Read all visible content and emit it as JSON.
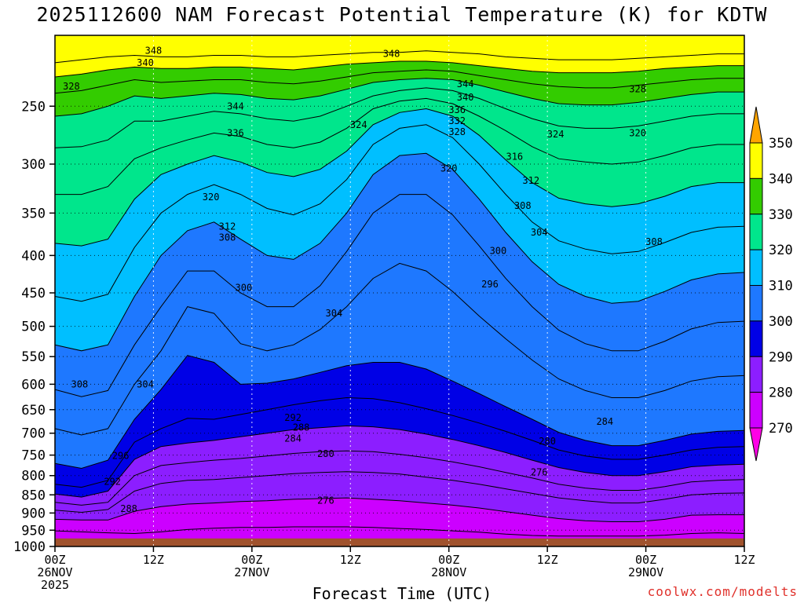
{
  "chart_data": {
    "type": "contour",
    "title": "2025112600 NAM Forecast Potential Temperature (K) for KDTW",
    "xlabel": "Forecast Time (UTC)",
    "ylabel": "",
    "credit": "coolwx.com/modelts",
    "y_ticks": [
      250,
      300,
      350,
      400,
      450,
      500,
      550,
      600,
      650,
      700,
      750,
      800,
      850,
      900,
      950,
      1000
    ],
    "ylim_hpa": [
      1000,
      200
    ],
    "x_range_hours": [
      0,
      84
    ],
    "x_ticks": [
      {
        "hour": 0,
        "line1": "00Z",
        "line2": "26NOV",
        "line3": "2025"
      },
      {
        "hour": 12,
        "line1": "12Z",
        "line2": "",
        "line3": ""
      },
      {
        "hour": 24,
        "line1": "00Z",
        "line2": "27NOV",
        "line3": ""
      },
      {
        "hour": 36,
        "line1": "12Z",
        "line2": "",
        "line3": ""
      },
      {
        "hour": 48,
        "line1": "00Z",
        "line2": "28NOV",
        "line3": ""
      },
      {
        "hour": 60,
        "line1": "12Z",
        "line2": "",
        "line3": ""
      },
      {
        "hour": 72,
        "line1": "00Z",
        "line2": "29NOV",
        "line3": ""
      },
      {
        "hour": 84,
        "line1": "12Z",
        "line2": "",
        "line3": ""
      }
    ],
    "colorbar": {
      "levels": [
        350,
        340,
        330,
        320,
        310,
        300,
        290,
        280,
        270
      ],
      "colors": [
        "#ffa500",
        "#ffff00",
        "#33cc00",
        "#00e68c",
        "#00bfff",
        "#1e78ff",
        "#0000e6",
        "#8c1eff",
        "#cc00ff",
        "#ff00e6"
      ]
    },
    "surface_color": "#a0522d",
    "isentropes_k": [
      {
        "theta": 276,
        "p": [
          952,
          955,
          958,
          960,
          955,
          948,
          944,
          942,
          942,
          940,
          940,
          940,
          942,
          945,
          948,
          952,
          956,
          962,
          966,
          968,
          968,
          968,
          968,
          965,
          960,
          958,
          960
        ]
      },
      {
        "theta": 280,
        "p": [
          918,
          920,
          920,
          895,
          882,
          875,
          872,
          868,
          866,
          862,
          860,
          858,
          862,
          866,
          872,
          878,
          886,
          896,
          906,
          916,
          922,
          925,
          925,
          918,
          906,
          905,
          905
        ]
      },
      {
        "theta": 284,
        "p": [
          892,
          898,
          890,
          840,
          820,
          812,
          810,
          805,
          800,
          795,
          792,
          790,
          792,
          796,
          804,
          812,
          822,
          834,
          846,
          858,
          866,
          872,
          872,
          862,
          850,
          846,
          845
        ]
      },
      {
        "theta": 288,
        "p": [
          870,
          878,
          870,
          800,
          775,
          768,
          762,
          758,
          752,
          746,
          742,
          740,
          742,
          748,
          756,
          766,
          778,
          792,
          806,
          822,
          832,
          838,
          838,
          828,
          816,
          812,
          810
        ]
      },
      {
        "theta": 292,
        "p": [
          848,
          856,
          840,
          760,
          730,
          722,
          716,
          708,
          700,
          692,
          688,
          684,
          686,
          692,
          702,
          714,
          728,
          744,
          762,
          780,
          792,
          800,
          800,
          790,
          778,
          774,
          772
        ]
      },
      {
        "theta": 296,
        "p": [
          822,
          830,
          812,
          720,
          690,
          668,
          670,
          660,
          650,
          640,
          632,
          626,
          628,
          636,
          648,
          662,
          678,
          696,
          716,
          738,
          752,
          760,
          760,
          750,
          738,
          732,
          730
        ]
      },
      {
        "theta": 300,
        "p": [
          770,
          782,
          762,
          670,
          610,
          548,
          560,
          600,
          598,
          590,
          578,
          566,
          560,
          560,
          572,
          594,
          618,
          644,
          670,
          698,
          716,
          728,
          728,
          716,
          702,
          696,
          694
        ]
      },
      {
        "theta": 304,
        "p": [
          690,
          704,
          690,
          600,
          540,
          470,
          480,
          528,
          540,
          530,
          505,
          470,
          430,
          410,
          420,
          448,
          484,
          520,
          556,
          590,
          612,
          626,
          626,
          612,
          594,
          586,
          584
        ]
      },
      {
        "theta": 308,
        "p": [
          610,
          624,
          612,
          530,
          470,
          420,
          420,
          450,
          470,
          470,
          440,
          395,
          350,
          330,
          330,
          352,
          388,
          430,
          470,
          506,
          528,
          540,
          540,
          524,
          504,
          494,
          492
        ]
      },
      {
        "theta": 312,
        "p": [
          530,
          540,
          530,
          455,
          400,
          370,
          360,
          380,
          400,
          405,
          385,
          350,
          310,
          292,
          290,
          305,
          335,
          372,
          408,
          438,
          455,
          465,
          462,
          448,
          432,
          424,
          422
        ]
      },
      {
        "theta": 316,
        "p": [
          455,
          462,
          452,
          390,
          350,
          330,
          320,
          330,
          345,
          352,
          340,
          315,
          282,
          268,
          265,
          276,
          300,
          330,
          360,
          382,
          392,
          398,
          395,
          384,
          372,
          366,
          365
        ]
      },
      {
        "theta": 320,
        "p": [
          385,
          388,
          380,
          335,
          310,
          300,
          292,
          298,
          308,
          312,
          305,
          288,
          265,
          255,
          252,
          258,
          274,
          296,
          318,
          334,
          340,
          343,
          340,
          332,
          322,
          318,
          318
        ]
      },
      {
        "theta": 324,
        "p": [
          330,
          330,
          322,
          295,
          285,
          278,
          272,
          275,
          282,
          285,
          280,
          268,
          252,
          246,
          244,
          248,
          258,
          270,
          284,
          295,
          298,
          300,
          298,
          292,
          285,
          282,
          282
        ]
      },
      {
        "theta": 328,
        "p": [
          285,
          284,
          278,
          262,
          262,
          258,
          254,
          256,
          260,
          262,
          258,
          250,
          242,
          238,
          236,
          238,
          244,
          252,
          260,
          266,
          268,
          268,
          266,
          262,
          258,
          256,
          256
        ]
      },
      {
        "theta": 332,
        "p": [
          258,
          256,
          250,
          242,
          244,
          242,
          240,
          241,
          244,
          245,
          242,
          237,
          232,
          230,
          229,
          230,
          234,
          239,
          244,
          248,
          249,
          249,
          247,
          244,
          241,
          239,
          239
        ]
      },
      {
        "theta": 336,
        "p": [
          240,
          238,
          234,
          230,
          232,
          231,
          230,
          230,
          232,
          233,
          231,
          228,
          225,
          224,
          223,
          224,
          227,
          230,
          233,
          235,
          236,
          236,
          234,
          232,
          230,
          229,
          229
        ]
      },
      {
        "theta": 340,
        "p": [
          228,
          226,
          223,
          221,
          222,
          222,
          221,
          221,
          222,
          223,
          221,
          219,
          218,
          217,
          217,
          218,
          220,
          222,
          224,
          225,
          225,
          225,
          224,
          222,
          221,
          220,
          220
        ]
      },
      {
        "theta": 344,
        "p": [
          218,
          216,
          214,
          213,
          214,
          214,
          213,
          213,
          214,
          214,
          213,
          212,
          211,
          211,
          210,
          211,
          212,
          214,
          215,
          216,
          216,
          216,
          215,
          214,
          213,
          212,
          212
        ]
      }
    ],
    "contour_labels": [
      {
        "text": "348",
        "hour": 12,
        "hpa": 210
      },
      {
        "text": "340",
        "hour": 11,
        "hpa": 218
      },
      {
        "text": "328",
        "hour": 2,
        "hpa": 235
      },
      {
        "text": "344",
        "hour": 22,
        "hpa": 250
      },
      {
        "text": "336",
        "hour": 22,
        "hpa": 272
      },
      {
        "text": "320",
        "hour": 19,
        "hpa": 333
      },
      {
        "text": "312",
        "hour": 21,
        "hpa": 365
      },
      {
        "text": "308",
        "hour": 21,
        "hpa": 378
      },
      {
        "text": "300",
        "hour": 23,
        "hpa": 443
      },
      {
        "text": "304",
        "hour": 34,
        "hpa": 480
      },
      {
        "text": "324",
        "hour": 37,
        "hpa": 265
      },
      {
        "text": "348",
        "hour": 41,
        "hpa": 212
      },
      {
        "text": "344",
        "hour": 50,
        "hpa": 233
      },
      {
        "text": "340",
        "hour": 50,
        "hpa": 243
      },
      {
        "text": "336",
        "hour": 49,
        "hpa": 253
      },
      {
        "text": "332",
        "hour": 49,
        "hpa": 262
      },
      {
        "text": "328",
        "hour": 49,
        "hpa": 271
      },
      {
        "text": "320",
        "hour": 48,
        "hpa": 304
      },
      {
        "text": "316",
        "hour": 56,
        "hpa": 293
      },
      {
        "text": "312",
        "hour": 58,
        "hpa": 316
      },
      {
        "text": "308",
        "hour": 57,
        "hpa": 342
      },
      {
        "text": "304",
        "hour": 59,
        "hpa": 372
      },
      {
        "text": "300",
        "hour": 54,
        "hpa": 394
      },
      {
        "text": "296",
        "hour": 53,
        "hpa": 438
      },
      {
        "text": "324",
        "hour": 61,
        "hpa": 273
      },
      {
        "text": "328",
        "hour": 71,
        "hpa": 237
      },
      {
        "text": "320",
        "hour": 71,
        "hpa": 272
      },
      {
        "text": "308",
        "hour": 73,
        "hpa": 383
      },
      {
        "text": "308",
        "hour": 3,
        "hpa": 600
      },
      {
        "text": "304",
        "hour": 11,
        "hpa": 600
      },
      {
        "text": "292",
        "hour": 29,
        "hpa": 667
      },
      {
        "text": "288",
        "hour": 30,
        "hpa": 688
      },
      {
        "text": "284",
        "hour": 29,
        "hpa": 712
      },
      {
        "text": "280",
        "hour": 33,
        "hpa": 747
      },
      {
        "text": "296",
        "hour": 8,
        "hpa": 752
      },
      {
        "text": "292",
        "hour": 7,
        "hpa": 815
      },
      {
        "text": "288",
        "hour": 9,
        "hpa": 888
      },
      {
        "text": "276",
        "hour": 33,
        "hpa": 865
      },
      {
        "text": "280",
        "hour": 60,
        "hpa": 718
      },
      {
        "text": "276",
        "hour": 59,
        "hpa": 792
      },
      {
        "text": "284",
        "hour": 67,
        "hpa": 675
      }
    ]
  }
}
